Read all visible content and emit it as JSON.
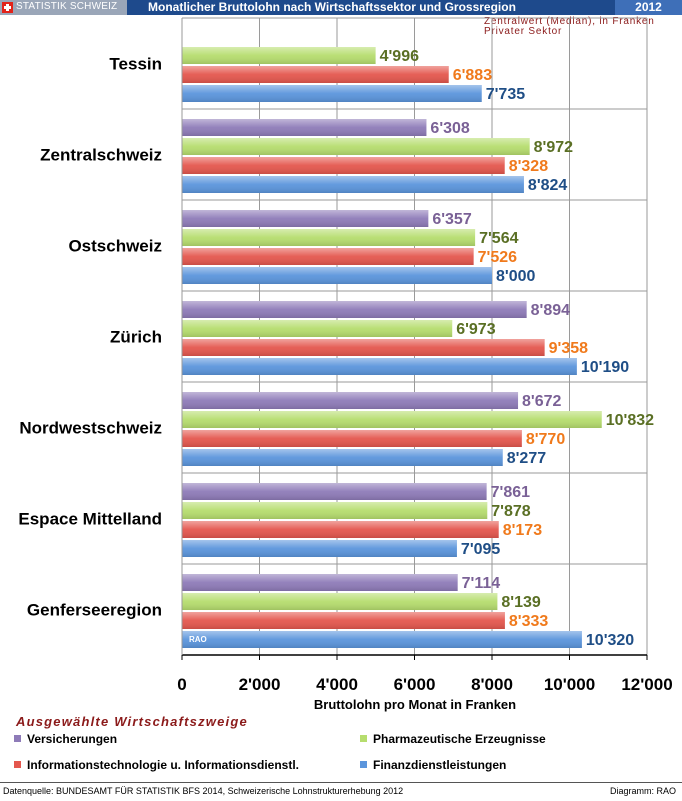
{
  "header": {
    "brand": "STATISTIK SCHWEIZ",
    "title": "Monatlicher Bruttolohn nach Wirtschaftssektor und Grossregion",
    "year": "2012",
    "subtitle_line1": "Zentralwert (Median), in Franken",
    "subtitle_line2": "Privater Sektor"
  },
  "chart_data": {
    "type": "bar",
    "orientation": "horizontal",
    "categories": [
      "Tessin",
      "Zentralschweiz",
      "Ostschweiz",
      "Zürich",
      "Nordwestschweiz",
      "Espace  Mittelland",
      "Genferseeregion"
    ],
    "series": [
      {
        "name": "Versicherungen",
        "color": "#8e7bb8",
        "label_color": "#7a6196",
        "values": [
          null,
          6308,
          6357,
          8894,
          8672,
          7861,
          7114
        ],
        "labels": [
          "",
          "6'308",
          "6'357",
          "8'894",
          "8'672",
          "7'861",
          "7'114"
        ]
      },
      {
        "name": "Pharmazeutische Erzeugnisse",
        "color": "#b6dd6e",
        "label_color": "#5a6f24",
        "values": [
          4996,
          8972,
          7564,
          6973,
          10832,
          7878,
          8139
        ],
        "labels": [
          "4'996",
          "8'972",
          "7'564",
          "6'973",
          "10'832",
          "7'878",
          "8'139"
        ]
      },
      {
        "name": "Informationstechnologie u. Informationsdienstl.",
        "color": "#e4574e",
        "label_color": "#f07a1c",
        "values": [
          6883,
          8328,
          7526,
          9358,
          8770,
          8173,
          8333
        ],
        "labels": [
          "6'883",
          "8'328",
          "7'526",
          "9'358",
          "8'770",
          "8'173",
          "8'333"
        ]
      },
      {
        "name": "Finanzdienstleistungen",
        "color": "#5b95dc",
        "label_color": "#1f4e86",
        "values": [
          7735,
          8824,
          8000,
          10190,
          8277,
          7095,
          10320
        ],
        "labels": [
          "7'735",
          "8'824",
          "8'000",
          "10'190",
          "8'277",
          "7'095",
          "10'320"
        ]
      }
    ],
    "xlim": [
      0,
      12000
    ],
    "xticks": [
      0,
      2000,
      4000,
      6000,
      8000,
      10000,
      12000
    ],
    "xtick_labels": [
      "0",
      "2'000",
      "4'000",
      "6'000",
      "8'000",
      "10'000",
      "12'000"
    ],
    "xlabel": "Bruttolohn pro Monat in Franken",
    "grid": true,
    "watermark": "RAO"
  },
  "legend": {
    "title": "Ausgewählte Wirtschaftszweige",
    "items": [
      {
        "label": "Versicherungen",
        "color": "#8e7bb8"
      },
      {
        "label": "Pharmazeutische Erzeugnisse",
        "color": "#b6dd6e"
      },
      {
        "label": "Informationstechnologie u. Informationsdienstl.",
        "color": "#e4574e"
      },
      {
        "label": "Finanzdienstleistungen",
        "color": "#5b95dc"
      }
    ]
  },
  "footer": {
    "source": "Datenquelle: BUNDESAMT FÜR STATISTIK BFS 2014, Schweizerische Lohnstrukturerhebung 2012",
    "diagram": "Diagramm: RAO"
  }
}
